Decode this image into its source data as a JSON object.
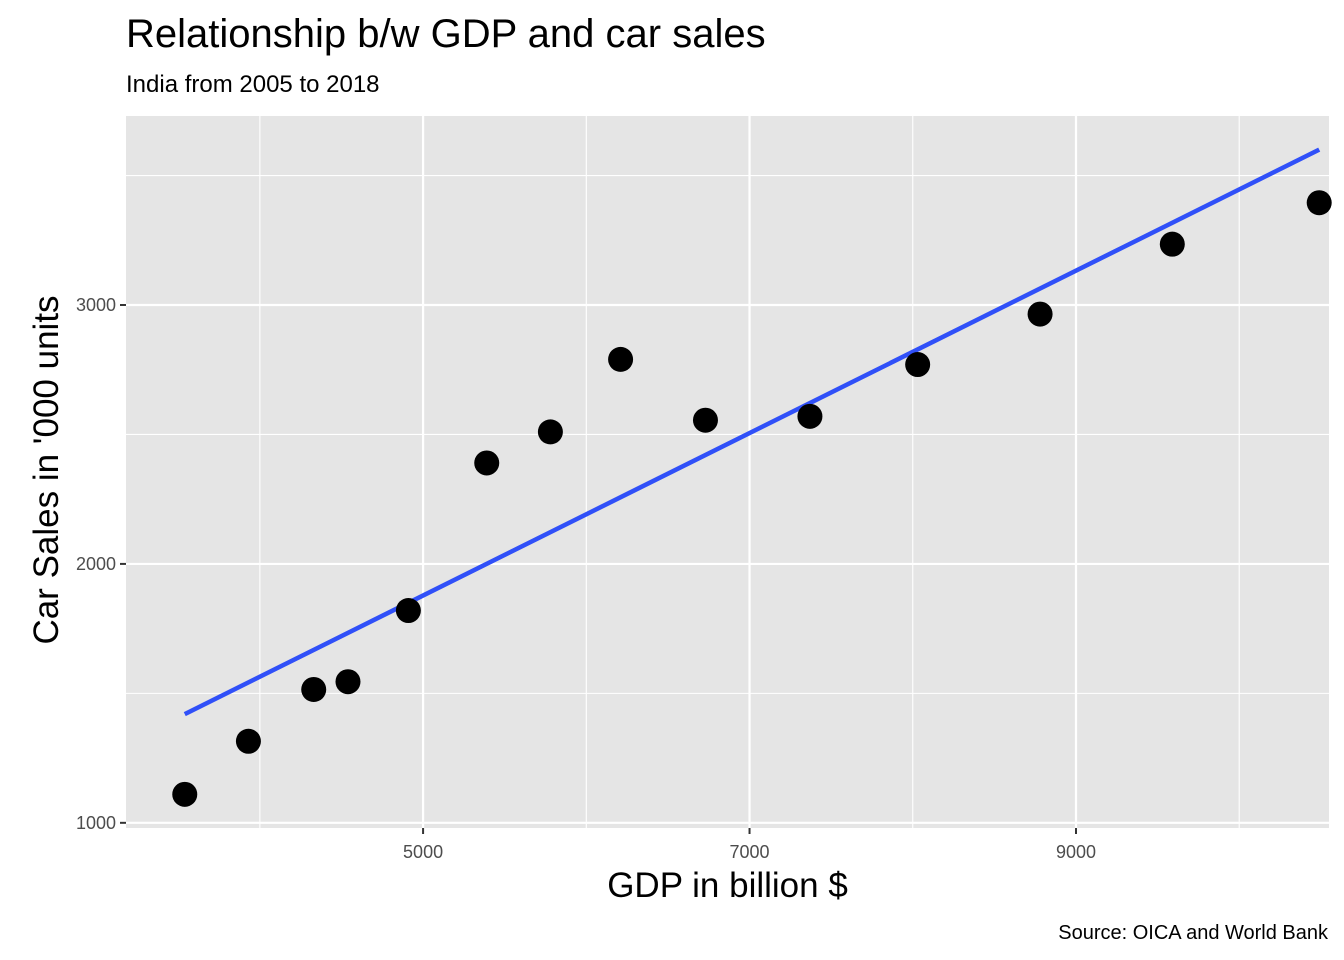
{
  "chart_data": {
    "type": "scatter",
    "title": "Relationship b/w GDP and car sales",
    "subtitle": "India from 2005 to 2018",
    "xlabel": "GDP in billion $",
    "ylabel": "Car Sales in '000 units",
    "caption": "Source: OICA and World Bank",
    "xlim": [
      3180,
      10550
    ],
    "ylim": [
      980,
      3730
    ],
    "x_ticks": [
      5000,
      7000,
      9000
    ],
    "x_tick_labels": [
      "5000",
      "7000",
      "9000"
    ],
    "x_minor_ticks": [
      4000,
      6000,
      8000,
      10000
    ],
    "y_ticks": [
      1000,
      2000,
      3000
    ],
    "y_tick_labels": [
      "1000",
      "2000",
      "3000"
    ],
    "y_minor_ticks": [
      1500,
      2500,
      3500
    ],
    "grid": true,
    "points": [
      {
        "x": 3540,
        "y": 1110
      },
      {
        "x": 3930,
        "y": 1315
      },
      {
        "x": 4330,
        "y": 1515
      },
      {
        "x": 4540,
        "y": 1545
      },
      {
        "x": 4910,
        "y": 1820
      },
      {
        "x": 5390,
        "y": 2390
      },
      {
        "x": 5780,
        "y": 2510
      },
      {
        "x": 6210,
        "y": 2790
      },
      {
        "x": 6730,
        "y": 2555
      },
      {
        "x": 7370,
        "y": 2570
      },
      {
        "x": 8030,
        "y": 2770
      },
      {
        "x": 8780,
        "y": 2965
      },
      {
        "x": 9590,
        "y": 3235
      },
      {
        "x": 10490,
        "y": 3395
      }
    ],
    "trend_line": {
      "x": [
        3540,
        10490
      ],
      "y": [
        1420,
        3600
      ]
    },
    "colors": {
      "panel": "#e5e5e5",
      "grid": "#ffffff",
      "point": "#000000",
      "trend": "#3050f8",
      "tick_text": "#4d4d4d"
    }
  }
}
